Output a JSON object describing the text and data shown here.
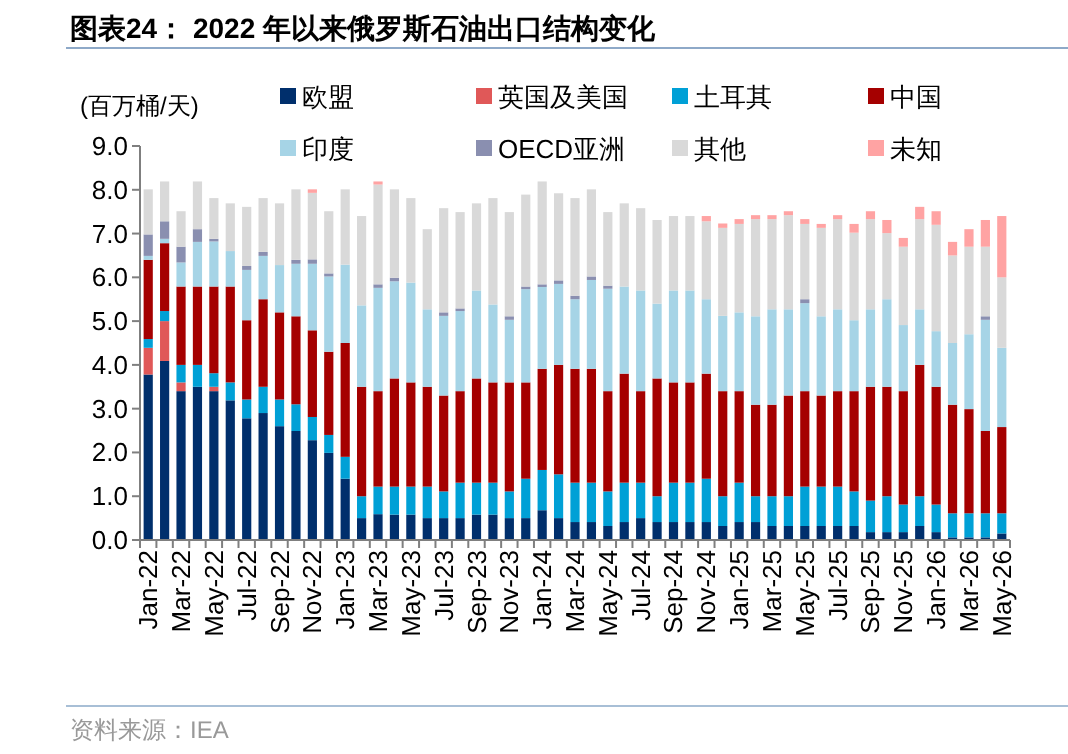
{
  "chart_data": {
    "type": "bar",
    "stacked": true,
    "title": "图表24： 2022 年以来俄罗斯石油出口结构变化",
    "ylabel": "(百万桶/天)",
    "annotations": [
      "资料来源：IEA"
    ],
    "legend": "top",
    "ylim": [
      0,
      9
    ],
    "yticks": [
      {
        "value": 0,
        "label": "0.0"
      },
      {
        "value": 1,
        "label": "1.0"
      },
      {
        "value": 2,
        "label": "2.0"
      },
      {
        "value": 3,
        "label": "3.0"
      },
      {
        "value": 4,
        "label": "4.0"
      },
      {
        "value": 5,
        "label": "5.0"
      },
      {
        "value": 6,
        "label": "6.0"
      },
      {
        "value": 7,
        "label": "7.0"
      },
      {
        "value": 8,
        "label": "8.0"
      },
      {
        "value": 9,
        "label": "9.0"
      }
    ],
    "categories": [
      "Jan-22",
      null,
      "Mar-22",
      null,
      "May-22",
      null,
      "Jul-22",
      null,
      "Sep-22",
      null,
      "Nov-22",
      null,
      "Jan-23",
      null,
      "Mar-23",
      null,
      "May-23",
      null,
      "Jul-23",
      null,
      "Sep-23",
      null,
      "Nov-23",
      null,
      "Jan-24",
      null,
      "Mar-24",
      null,
      "May-24",
      null,
      "Jul-24",
      null,
      "Sep-24",
      null,
      "Nov-24",
      null,
      "Jan-25",
      null,
      "Mar-25",
      null,
      "May-25",
      null,
      "Jul-25",
      null,
      "Sep-25",
      null,
      "Nov-25",
      null,
      "Jan-26",
      null,
      "Mar-26",
      null,
      "May-26"
    ],
    "series": [
      {
        "name": "欧盟",
        "color": "#002f6c",
        "values": [
          3.78,
          4.09,
          3.4,
          3.5,
          3.4,
          3.19,
          2.78,
          2.9,
          2.6,
          2.49,
          2.28,
          1.99,
          1.4,
          0.5,
          0.59,
          0.58,
          0.58,
          0.5,
          0.5,
          0.5,
          0.58,
          0.58,
          0.5,
          0.5,
          0.68,
          0.5,
          0.41,
          0.41,
          0.32,
          0.41,
          0.5,
          0.41,
          0.41,
          0.41,
          0.41,
          0.32,
          0.41,
          0.41,
          0.32,
          0.32,
          0.32,
          0.32,
          0.32,
          0.32,
          0.18,
          0.18,
          0.18,
          0.32,
          0.18,
          0.06,
          0.06,
          0.06,
          0.15
        ]
      },
      {
        "name": "英国及美国",
        "color": "#e05858",
        "values": [
          0.61,
          0.91,
          0.2,
          0,
          0.1,
          0,
          0,
          0,
          0,
          0,
          0,
          0,
          0,
          0,
          0,
          0,
          0,
          0,
          0,
          0,
          0,
          0,
          0,
          0,
          0,
          0,
          0,
          0,
          0,
          0,
          0,
          0,
          0,
          0,
          0,
          0,
          0,
          0,
          0,
          0,
          0,
          0,
          0,
          0,
          0,
          0,
          0,
          0,
          0,
          0,
          0,
          0,
          0
        ]
      },
      {
        "name": "土耳其",
        "color": "#00a0d6",
        "values": [
          0.2,
          0.23,
          0.4,
          0.5,
          0.31,
          0.41,
          0.43,
          0.6,
          0.61,
          0.61,
          0.53,
          0.41,
          0.5,
          0.5,
          0.63,
          0.64,
          0.64,
          0.72,
          0.61,
          0.81,
          0.73,
          0.73,
          0.61,
          0.9,
          0.92,
          1.0,
          0.9,
          0.9,
          0.79,
          0.9,
          0.81,
          0.59,
          0.9,
          0.9,
          0.99,
          0.68,
          0.9,
          0.59,
          0.68,
          0.68,
          0.9,
          0.9,
          0.9,
          0.79,
          0.72,
          0.82,
          0.63,
          0.68,
          0.63,
          0.55,
          0.55,
          0.55,
          0.46
        ]
      },
      {
        "name": "中国",
        "color": "#a50000",
        "values": [
          1.81,
          1.55,
          1.79,
          1.79,
          1.98,
          2.19,
          1.81,
          2.0,
          1.99,
          2.01,
          1.98,
          1.9,
          2.6,
          2.5,
          2.18,
          2.47,
          2.38,
          2.28,
          2.19,
          2.09,
          2.38,
          2.29,
          2.49,
          2.2,
          2.31,
          2.5,
          2.6,
          2.6,
          2.29,
          2.49,
          2.09,
          2.69,
          2.29,
          2.29,
          2.4,
          2.4,
          2.09,
          2.09,
          2.09,
          2.3,
          2.18,
          2.08,
          2.18,
          2.29,
          2.6,
          2.5,
          2.59,
          3.0,
          2.69,
          2.48,
          2.38,
          1.88,
          1.97
        ]
      },
      {
        "name": "印度",
        "color": "#a6d4e6",
        "values": [
          0.09,
          0.1,
          0.55,
          1.02,
          1.03,
          0.81,
          1.15,
          0.99,
          1.08,
          1.2,
          1.52,
          1.72,
          1.79,
          1.86,
          2.36,
          2.22,
          2.28,
          1.77,
          1.82,
          1.83,
          2.01,
          1.78,
          1.43,
          2.13,
          1.87,
          1.85,
          1.59,
          2.03,
          2.34,
          1.99,
          2.3,
          1.71,
          2.1,
          2.1,
          1.7,
          1.72,
          1.8,
          2.02,
          2.18,
          1.97,
          2.01,
          1.81,
          1.87,
          1.62,
          1.77,
          2.0,
          1.51,
          1.27,
          1.27,
          1.41,
          1.71,
          2.54,
          1.81
        ]
      },
      {
        "name": "OECD亚洲",
        "color": "#8a8fb0",
        "values": [
          0.49,
          0.4,
          0.36,
          0.29,
          0.06,
          0,
          0.09,
          0.09,
          0,
          0.09,
          0.1,
          0.07,
          0,
          0,
          0.08,
          0.08,
          0,
          0,
          0.08,
          0.06,
          0,
          0,
          0.08,
          0.06,
          0.06,
          0.08,
          0.08,
          0.08,
          0.07,
          0,
          0,
          0,
          0,
          0,
          0,
          0,
          0,
          0,
          0,
          0,
          0.09,
          0,
          0,
          0,
          0,
          0,
          0,
          0,
          0,
          0,
          0,
          0.08,
          0
        ]
      },
      {
        "name": "其他",
        "color": "#d9d9d9",
        "values": [
          1.03,
          0.91,
          0.81,
          1.09,
          0.93,
          1.09,
          1.35,
          1.23,
          1.41,
          1.61,
          1.52,
          1.42,
          1.72,
          2.04,
          2.28,
          2.02,
          1.93,
          1.83,
          2.38,
          2.2,
          1.99,
          2.43,
          2.38,
          2.1,
          2.35,
          1.99,
          2.23,
          1.99,
          1.68,
          1.9,
          1.88,
          1.91,
          1.7,
          1.7,
          1.78,
          2.01,
          2.02,
          2.22,
          2.06,
          2.15,
          1.72,
          2.02,
          2.06,
          2.0,
          2.06,
          1.51,
          1.79,
          2.06,
          2.43,
          2.0,
          2.0,
          1.59,
          1.61
        ]
      },
      {
        "name": "未知",
        "color": "#ffa3a3",
        "values": [
          0,
          0,
          0,
          0,
          0,
          0,
          0,
          0,
          0,
          0,
          0.08,
          0,
          0,
          0,
          0.07,
          0,
          0,
          0,
          0,
          0,
          0,
          0,
          0,
          0,
          0,
          0,
          0,
          0,
          0,
          0,
          0,
          0,
          0,
          0,
          0.12,
          0.1,
          0.11,
          0.09,
          0.09,
          0.09,
          0.11,
          0.09,
          0.09,
          0.2,
          0.18,
          0.3,
          0.2,
          0.28,
          0.31,
          0.31,
          0.4,
          0.61,
          1.4
        ]
      }
    ]
  }
}
